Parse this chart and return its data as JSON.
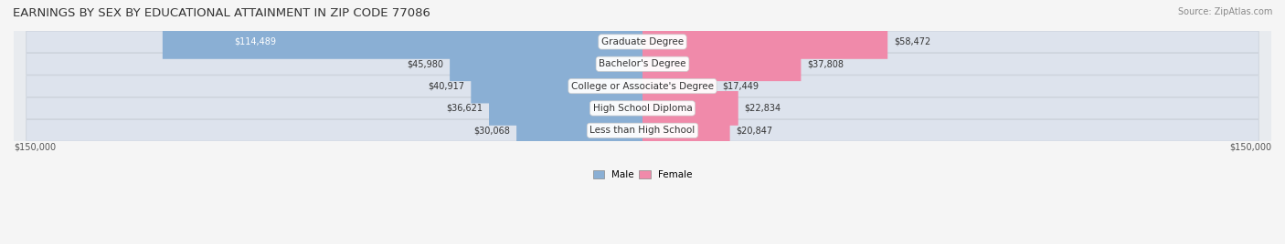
{
  "title": "EARNINGS BY SEX BY EDUCATIONAL ATTAINMENT IN ZIP CODE 77086",
  "source": "Source: ZipAtlas.com",
  "categories": [
    "Less than High School",
    "High School Diploma",
    "College or Associate's Degree",
    "Bachelor's Degree",
    "Graduate Degree"
  ],
  "male_values": [
    30068,
    36621,
    40917,
    45980,
    114489
  ],
  "female_values": [
    20847,
    22834,
    17449,
    37808,
    58472
  ],
  "male_color": "#8aafd4",
  "female_color": "#f08aaa",
  "max_val": 150000,
  "background_color": "#f0f0f0",
  "row_bg_color": "#e8e8e8",
  "label_color": "#555555",
  "title_color": "#333333",
  "bar_height": 0.55,
  "legend_male": "Male",
  "legend_female": "Female"
}
